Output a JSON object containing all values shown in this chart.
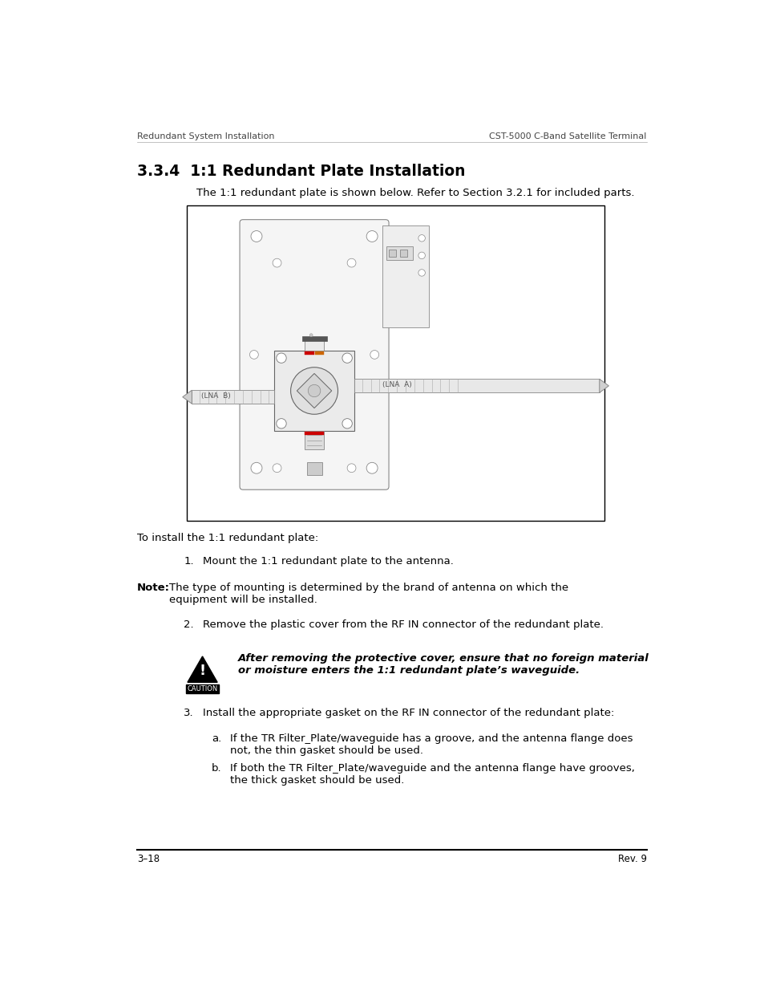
{
  "page_width": 9.54,
  "page_height": 12.35,
  "bg_color": "#ffffff",
  "header_left": "Redundant System Installation",
  "header_right": "CST-5000 C-Band Satellite Terminal",
  "footer_left": "3–18",
  "footer_right": "Rev. 9",
  "section_title": "3.3.4  1:1 Redundant Plate Installation",
  "intro_text": "The 1:1 redundant plate is shown below. Refer to Section 3.2.1 for included parts.",
  "install_intro": "To install the 1:1 redundant plate:",
  "step1": "Mount the 1:1 redundant plate to the antenna.",
  "note_label": "Note:",
  "note_body": "The type of mounting is determined by the brand of antenna on which the\nequipment will be installed.",
  "step2": "Remove the plastic cover from the RF IN connector of the redundant plate.",
  "caution_text": "After removing the protective cover, ensure that no foreign material\nor moisture enters the 1:1 redundant plate’s waveguide.",
  "step3": "Install the appropriate gasket on the RF IN connector of the redundant plate:",
  "step3a": "If the TR Filter_Plate/waveguide has a groove, and the antenna flange does\nnot, the thin gasket should be used.",
  "step3b": "If both the TR Filter_Plate/waveguide and the antenna flange have grooves,\nthe thick gasket should be used."
}
